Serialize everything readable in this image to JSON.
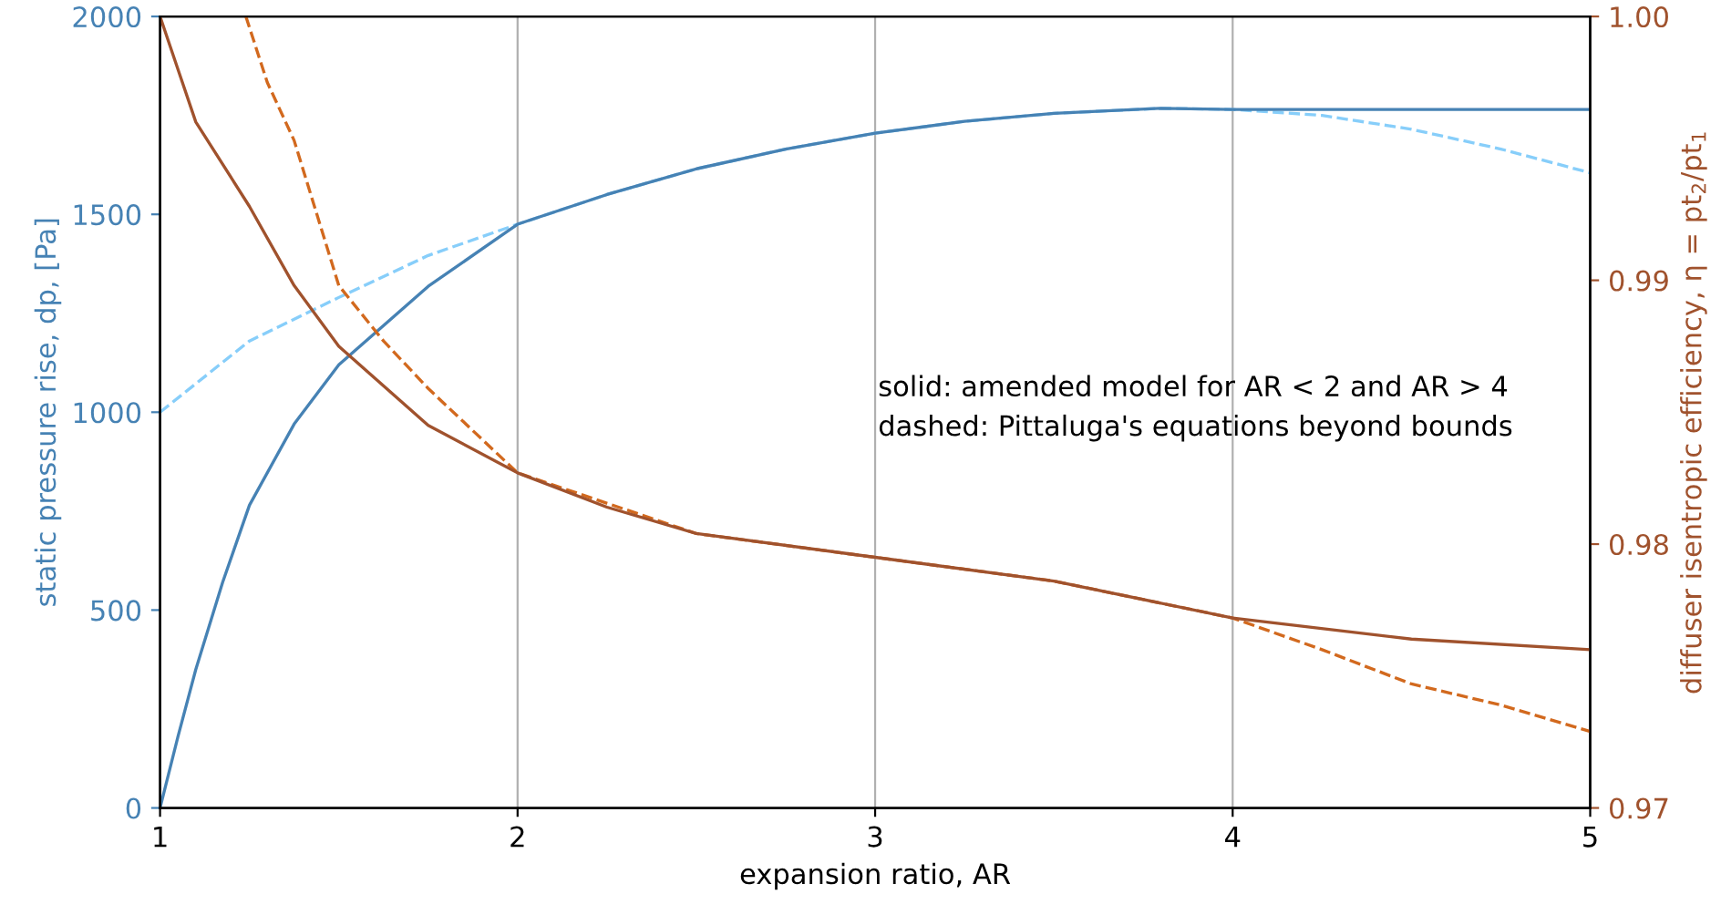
{
  "chart_data": {
    "type": "line",
    "xlabel": "expansion ratio, AR",
    "ylabel": "static pressure rise, dp, [Pa]",
    "y2label": "diffuser isentropic efficiency, η = pt$_{2}$/pt$_{1}$",
    "annotations": [
      "solid: amended model for AR < 2 and AR > 4",
      "dashed: Pittaluga's equations beyond bounds"
    ],
    "xlim": [
      1,
      5
    ],
    "xticks": [
      1,
      2,
      3,
      4,
      5
    ],
    "ylim": [
      0,
      2000
    ],
    "yticks": [
      0,
      500,
      1000,
      1500,
      2000
    ],
    "y2lim": [
      0.97,
      1.0
    ],
    "y2ticks": [
      {
        "value": 0.97,
        "label": "0.97"
      },
      {
        "value": 0.98,
        "label": "0.98"
      },
      {
        "value": 0.99,
        "label": "0.99"
      },
      {
        "value": 1.0,
        "label": "1.00"
      }
    ],
    "grid": "x",
    "legend": false,
    "marker": "none",
    "series": [
      {
        "color": "#87cefa",
        "line_style": "dashed",
        "x": [
          1,
          1.25,
          1.5,
          1.75,
          2,
          2.25,
          2.5,
          2.75,
          3,
          3.25,
          3.5,
          3.8,
          4,
          4.25,
          4.5,
          4.75,
          5
        ],
        "values": [
          1000,
          1180,
          1290,
          1396,
          1475,
          1550,
          1615,
          1665,
          1705,
          1735,
          1755,
          1768,
          1765,
          1750,
          1715,
          1665,
          1605
        ]
      },
      {
        "color": "#4682b4",
        "line_style": "solid",
        "x": [
          1,
          1.05,
          1.1,
          1.175,
          1.25,
          1.375,
          1.5,
          1.75,
          2,
          2.25,
          2.5,
          2.75,
          3,
          3.25,
          3.5,
          3.8,
          4,
          4.5,
          5
        ],
        "values": [
          0,
          180,
          350,
          570,
          765,
          970,
          1120,
          1318,
          1475,
          1550,
          1615,
          1665,
          1705,
          1735,
          1755,
          1768,
          1765,
          1765,
          1765
        ]
      },
      {
        "color": "#d2691e",
        "line_style": "dashed",
        "axis": "y2",
        "x": [
          1.24,
          1.3,
          1.375,
          1.5,
          1.625,
          1.75,
          2,
          2.5,
          3,
          3.5,
          4,
          4.25,
          4.5,
          4.75,
          5
        ],
        "values": [
          1.0,
          0.9975,
          0.9953,
          0.9898,
          0.9877,
          0.9859,
          0.9827,
          0.9804,
          0.9795,
          0.9786,
          0.9772,
          0.976,
          0.9747,
          0.9739,
          0.9729
        ]
      },
      {
        "color": "#a0522d",
        "line_style": "solid",
        "axis": "y2",
        "x": [
          1,
          1.05,
          1.1,
          1.25,
          1.375,
          1.5,
          1.75,
          2,
          2.25,
          2.5,
          3,
          3.5,
          4,
          4.5,
          5
        ],
        "values": [
          1.0,
          0.998,
          0.996,
          0.9928,
          0.9898,
          0.9875,
          0.9845,
          0.9827,
          0.9814,
          0.9804,
          0.9795,
          0.9786,
          0.9772,
          0.9764,
          0.976
        ]
      }
    ]
  }
}
